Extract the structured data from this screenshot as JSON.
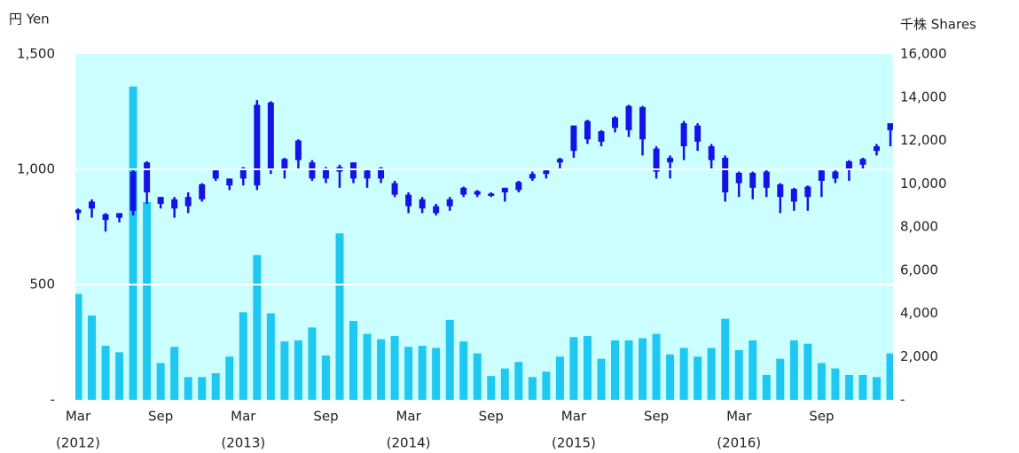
{
  "chart_data": {
    "type": "candlestick",
    "y_label": "円 Yen",
    "y2_label": "千株 Shares",
    "categories": [
      [
        "Mar",
        "(2012)"
      ],
      null,
      null,
      null,
      null,
      null,
      "Sep",
      null,
      null,
      null,
      null,
      null,
      [
        "Mar",
        "(2013)"
      ],
      null,
      null,
      null,
      null,
      null,
      "Sep",
      null,
      null,
      null,
      null,
      null,
      [
        "Mar",
        "(2014)"
      ],
      null,
      null,
      null,
      null,
      null,
      "Sep",
      null,
      null,
      null,
      null,
      null,
      [
        "Mar",
        "(2015)"
      ],
      null,
      null,
      null,
      null,
      null,
      "Sep",
      null,
      null,
      null,
      null,
      null,
      [
        "Mar",
        "(2016)"
      ],
      null,
      null,
      null,
      null,
      null,
      "Sep",
      null,
      null,
      null,
      null,
      null
    ],
    "ylim": [
      0,
      1500
    ],
    "yticks": [
      {
        "value": 0,
        "label": "-"
      },
      500,
      {
        "value": 1000,
        "label": "1,000"
      },
      {
        "value": 1500,
        "label": "1,500"
      }
    ],
    "y2lim": [
      0,
      16000
    ],
    "y2ticks": [
      {
        "value": 0,
        "label": "-"
      },
      {
        "value": 2000,
        "label": "2,000"
      },
      {
        "value": 4000,
        "label": "4,000"
      },
      {
        "value": 6000,
        "label": "6,000"
      },
      {
        "value": 8000,
        "label": "8,000"
      },
      {
        "value": 10000,
        "label": "10,000"
      },
      {
        "value": 12000,
        "label": "12,000"
      },
      {
        "value": 14000,
        "label": "14,000"
      },
      {
        "value": 16000,
        "label": "16,000"
      }
    ],
    "grid": true,
    "background": "#ccffff",
    "series": [
      {
        "type": "candlestick",
        "color": "#1414e6",
        "open": [
          810,
          830,
          780,
          790,
          820,
          900,
          850,
          830,
          840,
          870,
          960,
          930,
          960,
          1280,
          1000,
          1000,
          1040,
          960,
          960,
          990,
          960,
          960,
          960,
          890,
          840,
          830,
          810,
          840,
          890,
          890,
          885,
          900,
          910,
          960,
          980,
          1030,
          1080,
          1130,
          1120,
          1180,
          1170,
          1130,
          990,
          1030,
          1100,
          1120,
          1040,
          900,
          940,
          920,
          920,
          880,
          860,
          880,
          950,
          960,
          1000,
          1020,
          1080,
          1170
        ],
        "high": [
          830,
          870,
          810,
          810,
          1000,
          1035,
          880,
          880,
          900,
          940,
          1000,
          960,
          1010,
          1300,
          1295,
          1050,
          1130,
          1040,
          1010,
          1020,
          1030,
          1000,
          1010,
          950,
          900,
          880,
          850,
          880,
          925,
          910,
          900,
          920,
          950,
          990,
          1000,
          1050,
          1190,
          1215,
          1170,
          1230,
          1280,
          1275,
          1100,
          1060,
          1210,
          1200,
          1110,
          1060,
          990,
          990,
          1000,
          940,
          920,
          930,
          1000,
          1000,
          1040,
          1050,
          1110,
          1200
        ],
        "low": [
          780,
          790,
          730,
          770,
          800,
          850,
          830,
          790,
          810,
          860,
          950,
          910,
          930,
          910,
          980,
          960,
          1000,
          950,
          940,
          920,
          940,
          920,
          940,
          880,
          810,
          810,
          800,
          820,
          880,
          880,
          880,
          860,
          900,
          950,
          960,
          1000,
          1050,
          1110,
          1100,
          1160,
          1140,
          1060,
          960,
          960,
          1040,
          1080,
          1000,
          860,
          880,
          870,
          880,
          810,
          820,
          820,
          880,
          940,
          950,
          1000,
          1060,
          1100
        ],
        "close": [
          825,
          860,
          805,
          810,
          990,
          1030,
          880,
          870,
          880,
          935,
          995,
          960,
          1005,
          930,
          1290,
          1045,
          1125,
          1030,
          1000,
          1010,
          1030,
          995,
          1005,
          940,
          890,
          870,
          840,
          870,
          920,
          905,
          895,
          920,
          945,
          980,
          995,
          1045,
          1190,
          1210,
          1165,
          1225,
          1275,
          1270,
          1090,
          1050,
          1200,
          1190,
          1100,
          1050,
          985,
          985,
          990,
          935,
          915,
          925,
          995,
          990,
          1035,
          1045,
          1100,
          1200
        ]
      },
      {
        "type": "bar",
        "axis": "y2",
        "color": "#1ec8f0",
        "values": [
          4900,
          3900,
          2500,
          2200,
          14500,
          9150,
          1700,
          2450,
          1050,
          1050,
          1230,
          2000,
          4050,
          6700,
          4000,
          2700,
          2750,
          3350,
          2050,
          7700,
          3650,
          3050,
          2800,
          2950,
          2450,
          2500,
          2400,
          3700,
          2700,
          2150,
          1100,
          1450,
          1750,
          1050,
          1300,
          2000,
          2900,
          2950,
          1900,
          2750,
          2750,
          2850,
          3050,
          2100,
          2400,
          2000,
          2400,
          3750,
          2300,
          2750,
          1150,
          1900,
          2750,
          2600,
          1700,
          1450,
          1150,
          1150,
          1050,
          2150
        ]
      }
    ]
  }
}
